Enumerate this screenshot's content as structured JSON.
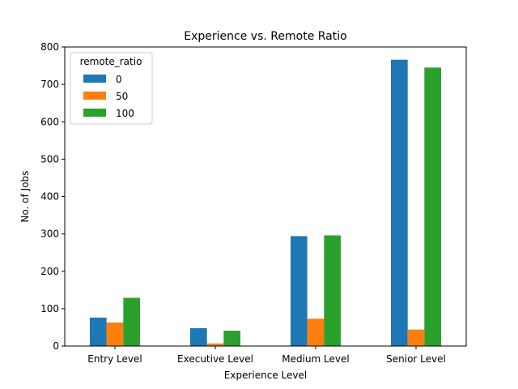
{
  "chart_data": {
    "type": "bar",
    "title": "Experience vs. Remote Ratio",
    "xlabel": "Experience Level",
    "ylabel": "No. of Jobs",
    "categories": [
      "Entry Level",
      "Executive Level",
      "Medium Level",
      "Senior Level"
    ],
    "ylim": [
      0,
      800
    ],
    "yticks": [
      0,
      100,
      200,
      300,
      400,
      500,
      600,
      700,
      800
    ],
    "grid": false,
    "legend": {
      "title": "remote_ratio",
      "placement": "top-left"
    },
    "series": [
      {
        "name": "0",
        "color": "#1f77b4",
        "values": [
          76,
          48,
          294,
          766
        ]
      },
      {
        "name": "50",
        "color": "#ff7f0e",
        "values": [
          63,
          7,
          73,
          44
        ]
      },
      {
        "name": "100",
        "color": "#2ca02c",
        "values": [
          129,
          41,
          296,
          745
        ]
      }
    ]
  }
}
